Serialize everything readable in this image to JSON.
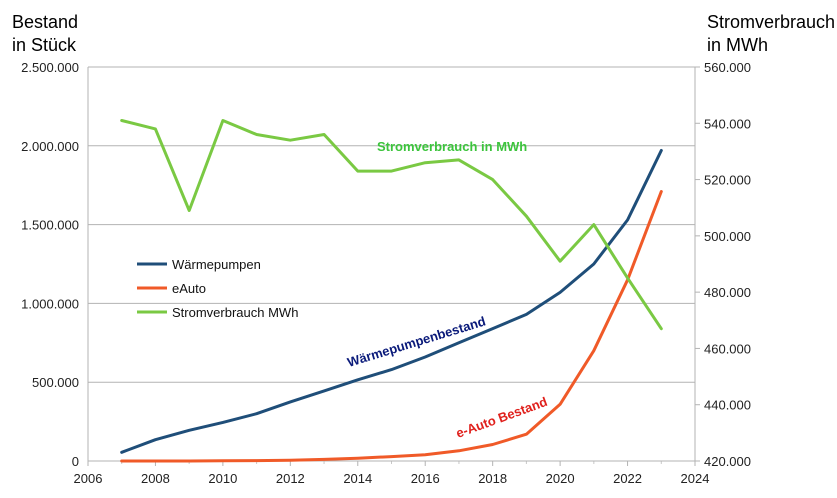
{
  "chart_data": {
    "type": "line",
    "y_left_title": "Bestand\nin Stück",
    "y_right_title": "Stromverbrauch\nin MWh",
    "x_range": [
      2006,
      2024
    ],
    "x_ticks": [
      2006,
      2008,
      2010,
      2012,
      2014,
      2016,
      2018,
      2020,
      2022,
      2024
    ],
    "y_left_range": [
      0,
      2500000
    ],
    "y_left_ticks": [
      0,
      500000,
      1000000,
      1500000,
      2000000,
      2500000
    ],
    "y_left_tick_labels": [
      "0",
      "500.000",
      "1.000.000",
      "1.500.000",
      "2.000.000",
      "2.500.000"
    ],
    "y_right_range": [
      420000,
      560000
    ],
    "y_right_ticks": [
      420000,
      440000,
      460000,
      480000,
      500000,
      520000,
      540000,
      560000
    ],
    "y_right_tick_labels": [
      "420.000",
      "440.000",
      "460.000",
      "480.000",
      "500.000",
      "520.000",
      "540.000",
      "560.000"
    ],
    "grid": "horizontal",
    "legend": "center-left",
    "series": [
      {
        "name": "Wärmepumpen",
        "axis": "left",
        "color": "#1f4e79",
        "x": [
          2007,
          2008,
          2009,
          2010,
          2011,
          2012,
          2013,
          2014,
          2015,
          2016,
          2017,
          2018,
          2019,
          2020,
          2021,
          2022,
          2023
        ],
        "values": [
          55000,
          135000,
          195000,
          245000,
          300000,
          375000,
          445000,
          515000,
          580000,
          660000,
          750000,
          840000,
          930000,
          1070000,
          1250000,
          1530000,
          1970000
        ]
      },
      {
        "name": "eAuto",
        "axis": "left",
        "color": "#f05a28",
        "x": [
          2007,
          2008,
          2009,
          2010,
          2011,
          2012,
          2013,
          2014,
          2015,
          2016,
          2017,
          2018,
          2019,
          2020,
          2021,
          2022,
          2023
        ],
        "values": [
          0,
          0,
          0,
          1000,
          2500,
          5000,
          10000,
          18000,
          28000,
          40000,
          65000,
          105000,
          170000,
          360000,
          700000,
          1150000,
          1710000
        ]
      },
      {
        "name": "Stromverbrauch MWh",
        "axis": "right",
        "color": "#7ac943",
        "x": [
          2007,
          2008,
          2009,
          2010,
          2011,
          2012,
          2013,
          2014,
          2015,
          2016,
          2017,
          2018,
          2019,
          2020,
          2021,
          2022,
          2023
        ],
        "values": [
          541000,
          538000,
          509000,
          541000,
          536000,
          534000,
          536000,
          523000,
          523000,
          526000,
          527000,
          520000,
          507000,
          491000,
          504000,
          485000,
          467000
        ]
      }
    ],
    "annotations": [
      {
        "text": "Stromverbrauch in MWh",
        "color": "#3cc43c"
      },
      {
        "text": "Wärmepumpenbestand",
        "color": "#0a1a7a"
      },
      {
        "text": "e-Auto Bestand",
        "color": "#e0201c"
      }
    ]
  }
}
